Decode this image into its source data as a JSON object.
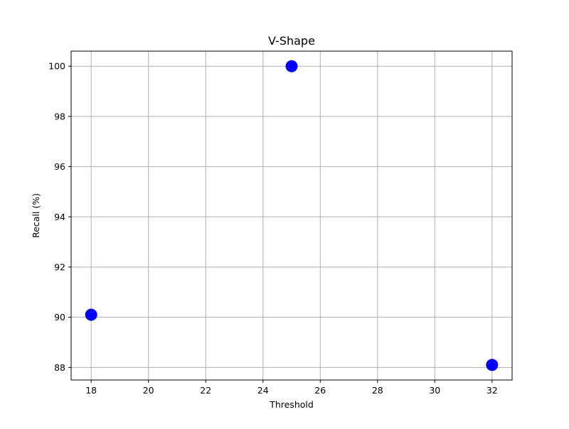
{
  "chart_data": {
    "type": "scatter",
    "title": "V-Shape",
    "xlabel": "Threshold",
    "ylabel": "Recall (%)",
    "xlim": [
      17.3,
      32.7
    ],
    "ylim": [
      87.5,
      100.6
    ],
    "xticks": [
      18,
      20,
      22,
      24,
      26,
      28,
      30,
      32
    ],
    "yticks": [
      88,
      90,
      92,
      94,
      96,
      98,
      100
    ],
    "grid": true,
    "legend": "none",
    "marker_color": "#0000ff",
    "series": [
      {
        "points": [
          {
            "x": 18,
            "y": 90.1
          },
          {
            "x": 25,
            "y": 100
          },
          {
            "x": 32,
            "y": 88.1
          }
        ]
      }
    ]
  }
}
